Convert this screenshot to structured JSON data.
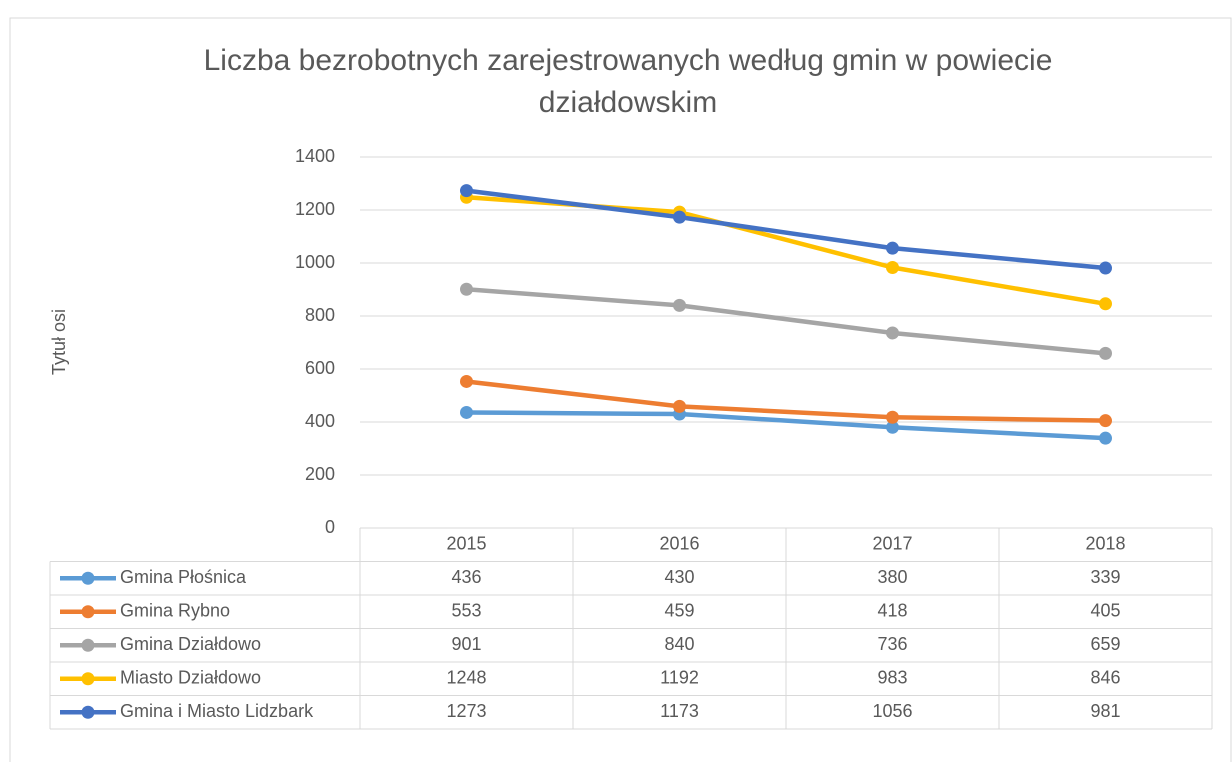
{
  "chart_data": {
    "type": "line",
    "title": [
      "Liczba bezrobotnych zarejestrowanych według gmin w powiecie",
      "działdowskim"
    ],
    "y_label": "Tytuł osi",
    "categories": [
      "2015",
      "2016",
      "2017",
      "2018"
    ],
    "series": [
      {
        "name": "Gmina Płośnica",
        "color": "#5b9bd5",
        "values": [
          436,
          430,
          380,
          339
        ]
      },
      {
        "name": "Gmina Rybno",
        "color": "#ed7d31",
        "values": [
          553,
          459,
          418,
          405
        ]
      },
      {
        "name": "Gmina Działdowo",
        "color": "#a5a5a5",
        "values": [
          901,
          840,
          736,
          659
        ]
      },
      {
        "name": "Miasto Działdowo",
        "color": "#ffc000",
        "values": [
          1248,
          1192,
          983,
          846
        ]
      },
      {
        "name": "Gmina i Miasto Lidzbark",
        "color": "#4472c4",
        "values": [
          1273,
          1173,
          1056,
          981
        ]
      }
    ],
    "ylim": [
      0,
      1400
    ],
    "yticks": [
      0,
      200,
      400,
      600,
      800,
      1000,
      1200,
      1400
    ],
    "grid": true,
    "data_table": true
  }
}
